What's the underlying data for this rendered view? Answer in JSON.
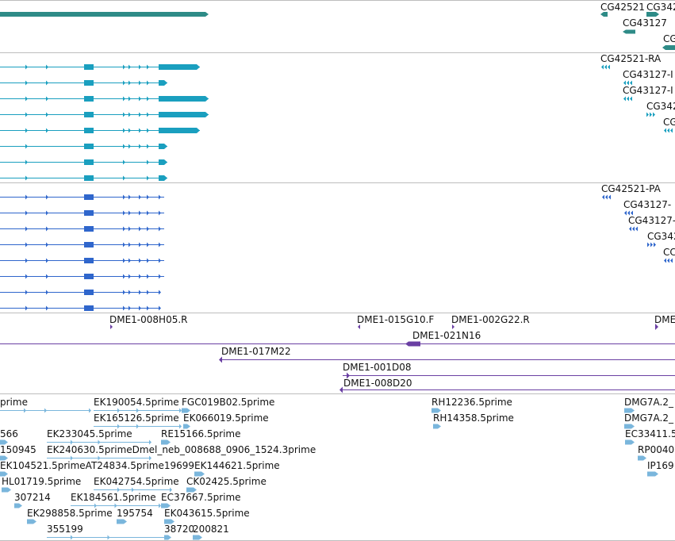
{
  "colors": {
    "gene": "#2e8b87",
    "transcript": "#1a9fbf",
    "cds": "#2f66cc",
    "clone": "#6a3fa3",
    "est": "#7ab6dc",
    "divider": "#bdbdbd"
  },
  "tracks": {
    "gene": {
      "labels": [
        "CG42521",
        "CG342",
        "CG43127",
        "CG"
      ]
    },
    "transcript": {
      "labels": [
        "CG42521-RA",
        "CG43127-I",
        "CG43127-I",
        "CG342",
        "CG"
      ]
    },
    "cds": {
      "labels": [
        "CG42521-PA",
        "CG43127-",
        "CG43127-",
        "CG342",
        "CC"
      ]
    },
    "clone": {
      "labels": [
        "DME1-008H05.R",
        "DME1-015G10.F",
        "DME1-002G22.R",
        "DME",
        "DME1-021N16",
        "DME1-017M22",
        "DME1-001D08",
        "DME1-008D20"
      ]
    },
    "est": {
      "labels": [
        "prime",
        "EK190054.5prime",
        "FGC019B02.5prime",
        "RH12236.5prime",
        "DMG7A.2_",
        "EK165126.5prime",
        "EK066019.5prime",
        "RH14358.5prime",
        "DMG7A.2_",
        "566",
        "EK233045.5prime",
        "RE15166.5prime",
        "EC33411.5",
        "150945",
        "EK240630.5primeDmel_neb_008688_0906_1524.3prime",
        "RP0040",
        "EK104521.5primeAT24834.5prime19699",
        "EK144621.5prime",
        "IP169",
        "HL01719.5prime",
        "EK042754.5prime",
        "CK02425.5prime",
        "307214",
        "EK184561.5prime",
        "EC37667.5prime",
        "EK298858.5prime",
        "195754",
        "EK043615.5prime",
        "355199",
        "38720",
        "200821"
      ]
    }
  }
}
